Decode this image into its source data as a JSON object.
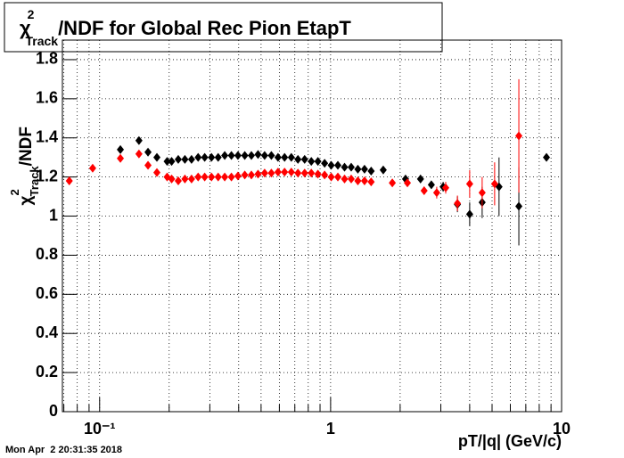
{
  "chart_data": {
    "type": "scatter",
    "title": {
      "symbol": "χ",
      "sup": "2",
      "sub": "Track",
      "rest": "/NDF for Global Rec Pion EtapT"
    },
    "y_label": {
      "symbol": "χ",
      "sup": "2",
      "sub": "Track",
      "rest": "/NDF"
    },
    "x_label": "pT/|q| (GeV/c)",
    "date": "Mon Apr  2 20:31:35 2018",
    "xlog": true,
    "grid": true,
    "xlim": [
      0.069,
      10
    ],
    "ylim": [
      0,
      1.9
    ],
    "xticks": [
      {
        "value": 0.1,
        "label": "10⁻¹"
      },
      1,
      10
    ],
    "xminorticks": [
      0.07,
      0.08,
      0.09,
      0.2,
      0.3,
      0.4,
      0.5,
      0.6,
      0.7,
      0.8,
      0.9,
      2,
      3,
      4,
      5,
      6,
      7,
      8,
      9
    ],
    "yticks": [
      0,
      0.2,
      0.4,
      0.6,
      0.8,
      1,
      1.2,
      1.4,
      1.6,
      1.8
    ],
    "series": [
      {
        "color": "#000000",
        "x": [
          0.123,
          0.148,
          0.162,
          0.177,
          0.196,
          0.205,
          0.219,
          0.234,
          0.25,
          0.267,
          0.285,
          0.305,
          0.326,
          0.348,
          0.372,
          0.397,
          0.425,
          0.454,
          0.485,
          0.518,
          0.554,
          0.592,
          0.632,
          0.676,
          0.722,
          0.772,
          0.825,
          0.881,
          0.942,
          1.006,
          1.075,
          1.149,
          1.228,
          1.312,
          1.402,
          1.498,
          1.69,
          2.11,
          2.45,
          2.73,
          3.07,
          3.54,
          4.0,
          4.53,
          5.36,
          6.53,
          8.6
        ],
        "values": [
          1.34,
          1.386,
          1.327,
          1.3,
          1.28,
          1.28,
          1.29,
          1.29,
          1.29,
          1.3,
          1.3,
          1.3,
          1.3,
          1.31,
          1.31,
          1.31,
          1.31,
          1.31,
          1.315,
          1.31,
          1.31,
          1.3,
          1.3,
          1.3,
          1.29,
          1.29,
          1.28,
          1.28,
          1.27,
          1.26,
          1.26,
          1.25,
          1.25,
          1.24,
          1.24,
          1.23,
          1.236,
          1.19,
          1.19,
          1.16,
          1.15,
          1.06,
          1.01,
          1.07,
          1.15,
          1.05,
          1.3
        ],
        "errors": [
          0.006,
          0.006,
          0.005,
          0.005,
          0.005,
          0.005,
          0.005,
          0.005,
          0.005,
          0.005,
          0.005,
          0.005,
          0.005,
          0.005,
          0.005,
          0.005,
          0.005,
          0.005,
          0.005,
          0.005,
          0.005,
          0.005,
          0.005,
          0.005,
          0.005,
          0.005,
          0.005,
          0.005,
          0.005,
          0.005,
          0.005,
          0.005,
          0.005,
          0.005,
          0.005,
          0.005,
          0.01,
          0.015,
          0.02,
          0.02,
          0.025,
          0.04,
          0.06,
          0.08,
          0.15,
          0.2,
          0.01
        ]
      },
      {
        "color": "#ff0000",
        "x": [
          0.0739,
          0.0933,
          0.123,
          0.148,
          0.162,
          0.177,
          0.196,
          0.205,
          0.219,
          0.234,
          0.25,
          0.267,
          0.285,
          0.305,
          0.326,
          0.348,
          0.372,
          0.397,
          0.425,
          0.454,
          0.485,
          0.518,
          0.554,
          0.592,
          0.632,
          0.676,
          0.722,
          0.772,
          0.825,
          0.881,
          0.942,
          1.006,
          1.075,
          1.149,
          1.228,
          1.312,
          1.402,
          1.498,
          1.85,
          2.15,
          2.54,
          2.88,
          3.15,
          3.54,
          4.0,
          4.53,
          5.13,
          6.53
        ],
        "values": [
          1.18,
          1.245,
          1.295,
          1.318,
          1.26,
          1.223,
          1.2,
          1.19,
          1.18,
          1.19,
          1.19,
          1.2,
          1.2,
          1.2,
          1.2,
          1.2,
          1.2,
          1.205,
          1.21,
          1.21,
          1.215,
          1.22,
          1.22,
          1.225,
          1.225,
          1.225,
          1.22,
          1.22,
          1.22,
          1.215,
          1.21,
          1.2,
          1.2,
          1.19,
          1.19,
          1.18,
          1.18,
          1.175,
          1.17,
          1.17,
          1.13,
          1.12,
          1.145,
          1.065,
          1.165,
          1.12,
          1.165,
          1.41
        ],
        "errors": [
          0.01,
          0.006,
          0.006,
          0.006,
          0.005,
          0.005,
          0.005,
          0.005,
          0.005,
          0.005,
          0.005,
          0.005,
          0.005,
          0.005,
          0.005,
          0.005,
          0.005,
          0.005,
          0.005,
          0.005,
          0.005,
          0.005,
          0.005,
          0.005,
          0.005,
          0.005,
          0.005,
          0.005,
          0.005,
          0.005,
          0.005,
          0.005,
          0.005,
          0.005,
          0.005,
          0.005,
          0.005,
          0.005,
          0.015,
          0.015,
          0.02,
          0.03,
          0.03,
          0.04,
          0.07,
          0.08,
          0.11,
          0.29
        ]
      }
    ]
  }
}
